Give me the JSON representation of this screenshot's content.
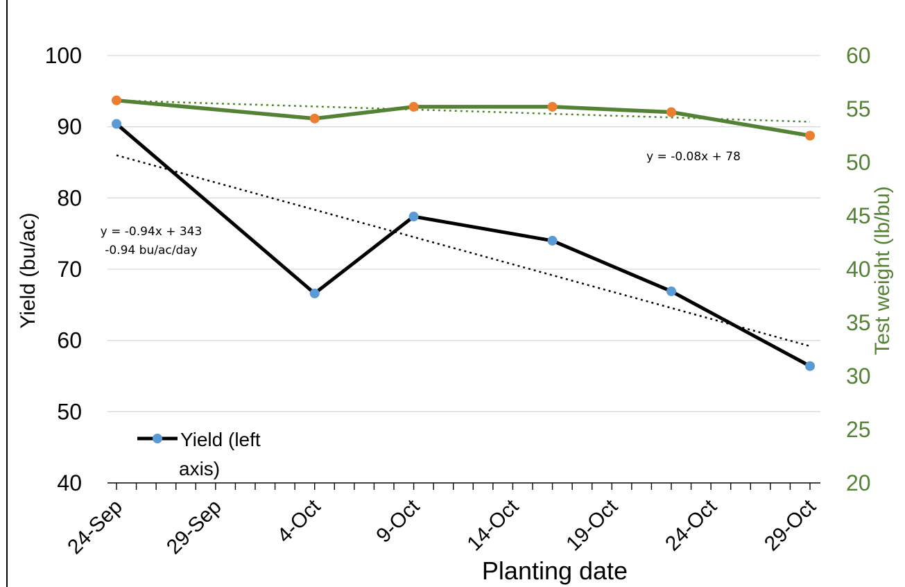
{
  "chart_data": {
    "type": "line",
    "title": "",
    "xlabel": "Planting date",
    "ylabel_left": "Yield (bu/ac)",
    "ylabel_right": "Test weight (lb/bu)",
    "x_tick_labels": [
      "24-Sep",
      "29-Sep",
      "4-Oct",
      "9-Oct",
      "14-Oct",
      "19-Oct",
      "24-Oct",
      "29-Oct"
    ],
    "x_range_days": [
      0,
      35
    ],
    "y_left_range": [
      40,
      100
    ],
    "y_left_ticks": [
      "40",
      "50",
      "60",
      "70",
      "80",
      "90",
      "100"
    ],
    "y_right_range": [
      20,
      60
    ],
    "y_right_ticks": [
      "20",
      "25",
      "30",
      "35",
      "40",
      "45",
      "50",
      "55",
      "60"
    ],
    "grid": "horizontal",
    "series": [
      {
        "name": "Yield (left axis)",
        "axis": "left",
        "line_color": "#000000",
        "marker_color": "#5B9BD5",
        "dates": [
          "24-Sep",
          "4-Oct",
          "9-Oct",
          "16-Oct",
          "22-Oct",
          "29-Oct"
        ],
        "values": [
          90.4,
          66.6,
          77.4,
          74.0,
          66.9,
          56.4
        ]
      },
      {
        "name": "",
        "axis": "right",
        "line_color": "#548235",
        "marker_color": "#ED7D31",
        "dates": [
          "24-Sep",
          "4-Oct",
          "9-Oct",
          "16-Oct",
          "22-Oct",
          "29-Oct"
        ],
        "values": [
          55.8,
          54.1,
          55.2,
          55.2,
          54.7,
          52.5
        ]
      }
    ],
    "trendlines": [
      {
        "series": "yield",
        "equation": "y = -0.94x + 343",
        "rate_label": "-0.94 bu/ac/day",
        "start": 86.0,
        "end": 59.2
      },
      {
        "series": "test_weight",
        "equation": "y = -0.08x + 78",
        "start": 55.8,
        "end": 53.8
      }
    ],
    "legend": {
      "position": "bottom-left",
      "entries": [
        "Yield (left axis)"
      ]
    }
  },
  "colors": {
    "axis": "#000000",
    "grid": "#D9D9D9",
    "right_axis_text": "#548235",
    "yield_line": "#000000",
    "yield_marker": "#5B9BD5",
    "tw_line": "#548235",
    "tw_marker": "#ED7D31"
  }
}
